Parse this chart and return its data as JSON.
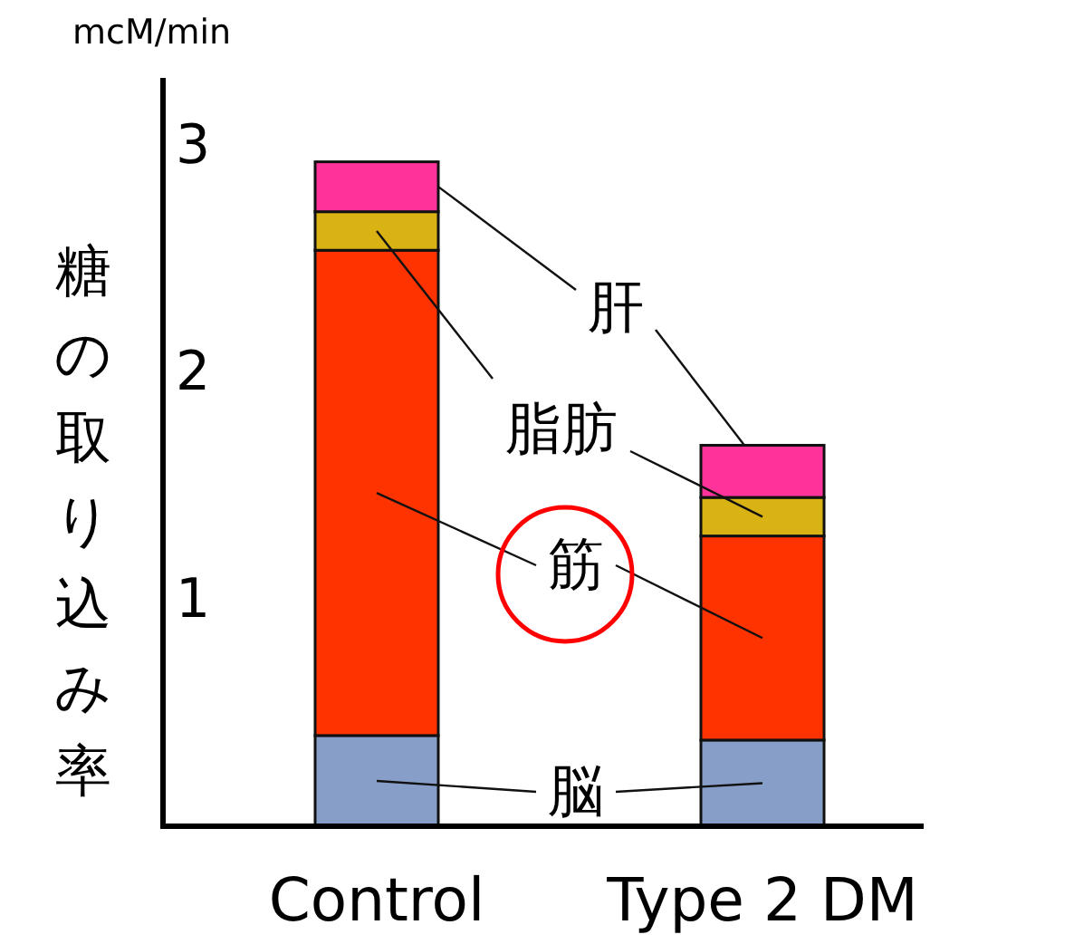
{
  "chart_data": {
    "type": "bar",
    "stacked": true,
    "ylabel": "糖の取り込み率",
    "annotations": [
      "mcM/min"
    ],
    "categories": [
      "Control",
      "Type 2 DM"
    ],
    "ylim": [
      0,
      3.3
    ],
    "yticks": [
      1,
      2,
      3
    ],
    "grid": false,
    "legend": "center",
    "series": [
      {
        "name": "脳",
        "color": "#879fc8",
        "values": [
          0.4,
          0.38
        ]
      },
      {
        "name": "筋",
        "color": "#ff3300",
        "values": [
          2.14,
          0.9
        ]
      },
      {
        "name": "脂肪",
        "color": "#d9b214",
        "values": [
          0.17,
          0.17
        ]
      },
      {
        "name": "肝",
        "color": "#ff3399",
        "values": [
          0.22,
          0.23
        ]
      }
    ]
  }
}
